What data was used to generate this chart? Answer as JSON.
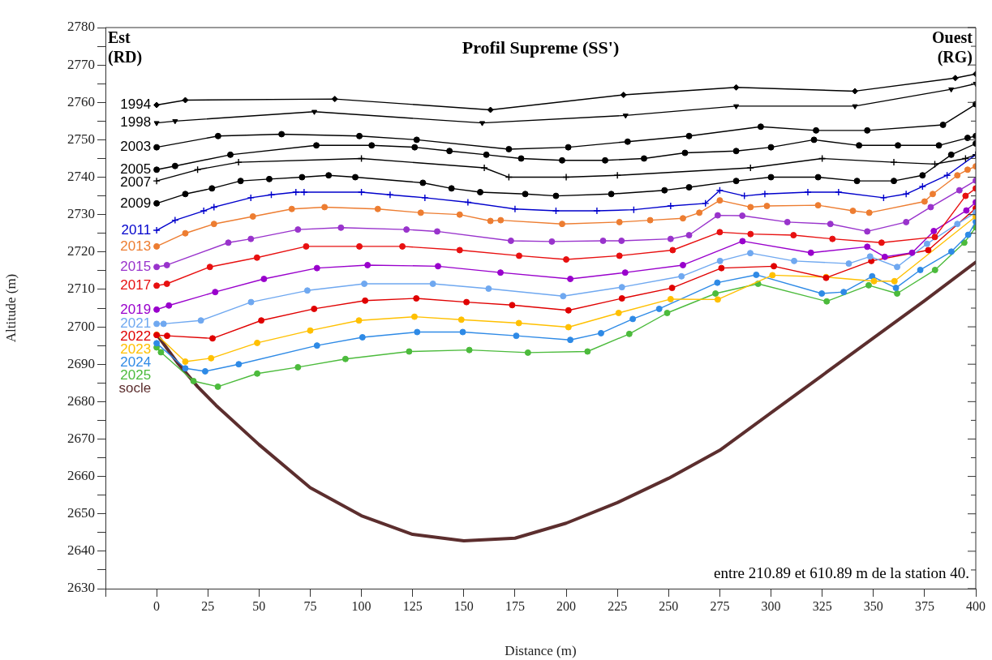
{
  "chart_data": {
    "type": "line",
    "title": "Profil Supreme (SS')",
    "xlabel": "Distance (m)",
    "ylabel": "Altitude (m)",
    "annotations": [
      "Est\n(RD)",
      "Ouest\n(RG)",
      "entre 210.89 et 610.89 m de la station 40."
    ],
    "xlim": [
      -25,
      400
    ],
    "xticks": [
      {
        "value": -25,
        "label": null
      },
      0,
      25,
      50,
      75,
      100,
      125,
      150,
      175,
      200,
      225,
      250,
      275,
      300,
      325,
      350,
      375,
      400
    ],
    "ylim": [
      2630,
      2780
    ],
    "yticks": [
      2630,
      {
        "value": 2635,
        "label": null
      },
      2640,
      {
        "value": 2645,
        "label": null
      },
      2650,
      {
        "value": 2655,
        "label": null
      },
      2660,
      {
        "value": 2665,
        "label": null
      },
      2670,
      {
        "value": 2675,
        "label": null
      },
      2680,
      {
        "value": 2685,
        "label": null
      },
      2690,
      {
        "value": 2695,
        "label": null
      },
      2700,
      {
        "value": 2705,
        "label": null
      },
      2710,
      {
        "value": 2715,
        "label": null
      },
      2720,
      {
        "value": 2725,
        "label": null
      },
      2730,
      {
        "value": 2735,
        "label": null
      },
      2740,
      {
        "value": 2745,
        "label": null
      },
      2750,
      {
        "value": 2755,
        "label": null
      },
      2760,
      {
        "value": 2765,
        "label": null
      },
      2770,
      {
        "value": 2775,
        "label": null
      },
      2780
    ],
    "grid": false,
    "legend": false,
    "line_style": "solid",
    "series": [
      {
        "name": "1994",
        "color": "#000000",
        "marker": "diamond",
        "x": [
          0,
          14,
          87,
          163,
          228,
          283,
          341,
          390,
          400
        ],
        "values": [
          2759.3,
          2760.6,
          2760.9,
          2758,
          2762,
          2764,
          2763,
          2766.5,
          2767.6
        ]
      },
      {
        "name": "1998",
        "color": "#000000",
        "marker": "triangle",
        "x": [
          0,
          9,
          77,
          159,
          229,
          283,
          341,
          388,
          400
        ],
        "values": [
          2754.5,
          2755,
          2757.5,
          2754.5,
          2756.5,
          2759,
          2759,
          2763.5,
          2765
        ]
      },
      {
        "name": "2003",
        "color": "#000000",
        "marker": "circle",
        "x": [
          0,
          30,
          61,
          99,
          127,
          172,
          201,
          230,
          260,
          295,
          322,
          347,
          384,
          400
        ],
        "values": [
          2748,
          2751,
          2751.5,
          2751,
          2750,
          2747.5,
          2748,
          2749.5,
          2751,
          2753.5,
          2752.5,
          2752.5,
          2754,
          2759.5
        ]
      },
      {
        "name": "2005",
        "color": "#000000",
        "marker": "circle",
        "x": [
          0,
          9,
          36,
          78,
          105,
          126,
          143,
          161,
          178,
          198,
          219,
          238,
          258,
          283,
          300,
          321,
          343,
          362,
          382,
          396,
          400
        ],
        "values": [
          2742,
          2743,
          2746,
          2748.5,
          2748.5,
          2748,
          2747,
          2746,
          2745,
          2744.5,
          2744.5,
          2745,
          2746.5,
          2747,
          2748,
          2750,
          2748.5,
          2748.5,
          2748.5,
          2750.5,
          2751
        ]
      },
      {
        "name": "2007",
        "color": "#000000",
        "marker": "cross",
        "x": [
          0,
          20,
          40,
          100,
          160,
          172,
          200,
          225,
          290,
          325,
          360,
          380,
          395,
          400
        ],
        "values": [
          2739,
          2742,
          2744,
          2745,
          2742.5,
          2740,
          2740,
          2740.5,
          2742.5,
          2745,
          2744,
          2743.5,
          2745,
          2746
        ]
      },
      {
        "name": "2009",
        "color": "#000000",
        "marker": "circle",
        "x": [
          0,
          14,
          27,
          41,
          55,
          71,
          84,
          97,
          130,
          144,
          158,
          180,
          195,
          222,
          248,
          260,
          283,
          300,
          323,
          342,
          360,
          374,
          388,
          400
        ],
        "values": [
          2733,
          2735.5,
          2737,
          2739,
          2739.5,
          2740,
          2740.5,
          2740,
          2738.5,
          2737,
          2736,
          2735.5,
          2735,
          2735.5,
          2736.5,
          2737.3,
          2739,
          2740,
          2740,
          2739,
          2739,
          2740.5,
          2746,
          2749
        ]
      },
      {
        "name": "2011",
        "color": "#0000cc",
        "marker": "cross",
        "x": [
          0,
          9,
          23,
          28,
          46,
          56,
          68,
          72,
          100,
          114,
          131,
          152,
          175,
          195,
          215,
          233,
          251,
          268,
          275,
          287,
          297,
          318,
          333,
          355,
          366,
          374,
          386,
          400
        ],
        "values": [
          2725.8,
          2728.5,
          2731,
          2732,
          2734.5,
          2735.3,
          2736,
          2736,
          2736,
          2735.3,
          2734.5,
          2733.3,
          2731.5,
          2731,
          2731,
          2731.3,
          2732.3,
          2733,
          2736.5,
          2735,
          2735.5,
          2736,
          2736,
          2734.5,
          2735.5,
          2737.5,
          2740.5,
          2746
        ]
      },
      {
        "name": "2013",
        "color": "#ed7d31",
        "marker": "circle",
        "x": [
          0,
          14,
          28,
          47,
          66,
          82,
          108,
          129,
          148,
          163,
          168,
          198,
          226,
          241,
          257,
          265,
          275,
          290,
          298,
          323,
          340,
          348,
          375,
          379,
          391,
          396,
          400
        ],
        "values": [
          2721.5,
          2725,
          2727.5,
          2729.5,
          2731.5,
          2732,
          2731.5,
          2730.5,
          2730,
          2728.3,
          2728.5,
          2727.5,
          2728,
          2728.5,
          2729,
          2730.5,
          2733.8,
          2732,
          2732.3,
          2732.5,
          2731,
          2730.5,
          2733.5,
          2735.5,
          2740.5,
          2742,
          2742.9
        ]
      },
      {
        "name": "2015",
        "color": "#9933cc",
        "marker": "circle",
        "x": [
          0,
          5,
          35,
          46,
          69,
          90,
          122,
          137,
          173,
          193,
          218,
          227,
          251,
          260,
          274,
          286,
          308,
          329,
          347,
          366,
          378,
          392,
          400
        ],
        "values": [
          2716,
          2716.5,
          2722.5,
          2723.5,
          2726,
          2726.5,
          2726,
          2725.5,
          2723,
          2722.8,
          2723,
          2723,
          2723.5,
          2724.5,
          2729.8,
          2729.7,
          2728,
          2727.5,
          2725.5,
          2728,
          2732,
          2736.5,
          2739.1
        ]
      },
      {
        "name": "2017",
        "color": "#e81010",
        "marker": "circle",
        "x": [
          0,
          5,
          26,
          49,
          73,
          99,
          120,
          148,
          177,
          200,
          226,
          252,
          275,
          290,
          311,
          330,
          354,
          380,
          395,
          400
        ],
        "values": [
          2711,
          2711.5,
          2716,
          2718.5,
          2721.5,
          2721.5,
          2721.5,
          2720.5,
          2719,
          2718,
          2719,
          2720.5,
          2725.3,
          2724.8,
          2724.5,
          2723.5,
          2722.5,
          2724,
          2735,
          2737
        ]
      },
      {
        "name": "2019",
        "color": "#9900cc",
        "marker": "circle",
        "x": [
          0,
          6,
          28.6,
          52.4,
          78.3,
          103,
          137.4,
          167.9,
          202,
          228.8,
          257,
          286.1,
          319.5,
          347,
          355.6,
          368.9,
          379.5,
          395.4,
          400
        ],
        "values": [
          2704.6,
          2705.7,
          2709.3,
          2712.8,
          2715.7,
          2716.5,
          2716.2,
          2714.5,
          2712.8,
          2714.5,
          2716.5,
          2722.9,
          2719.8,
          2721.4,
          2718.7,
          2719.8,
          2725.6,
          2731.1,
          2733.3
        ]
      },
      {
        "name": "2021",
        "color": "#6fa8f0",
        "marker": "circle",
        "x": [
          0,
          3.4,
          21.6,
          46.1,
          73.6,
          101.4,
          134.9,
          162.1,
          198.5,
          227.2,
          256.3,
          275.1,
          289.9,
          311.3,
          338,
          348.4,
          361.6,
          376.2,
          391,
          400
        ],
        "values": [
          2700.8,
          2700.8,
          2701.7,
          2706.6,
          2709.7,
          2711.5,
          2711.5,
          2710.2,
          2708.2,
          2710.6,
          2713.5,
          2717.6,
          2719.7,
          2717.6,
          2716.9,
          2718.8,
          2716,
          2722.2,
          2727.5,
          2730.6
        ]
      },
      {
        "name": "2022",
        "color": "#e00000",
        "marker": "circle",
        "x": [
          0,
          5.1,
          27.3,
          51.1,
          76.9,
          101.8,
          126.8,
          151.3,
          173.6,
          201.1,
          227.2,
          251.7,
          275.8,
          301.4,
          326.9,
          349,
          376.8,
          400
        ],
        "values": [
          2697.8,
          2697.6,
          2696.9,
          2701.7,
          2704.8,
          2707,
          2707.6,
          2706.6,
          2705.8,
          2704.4,
          2707.6,
          2710.4,
          2715.7,
          2716.2,
          2713.1,
          2717.6,
          2720.5,
          2731.7
        ]
      },
      {
        "name": "2023",
        "color": "#ffc000",
        "marker": "circle",
        "x": [
          0,
          14,
          26.6,
          49.1,
          75,
          98.8,
          125.9,
          148.8,
          176.9,
          201.1,
          225.6,
          251,
          274,
          300.7,
          326.9,
          350.3,
          360.3,
          400
        ],
        "values": [
          2697.9,
          2690.7,
          2691.6,
          2695.7,
          2699,
          2701.7,
          2702.7,
          2701.9,
          2701,
          2699.9,
          2703.7,
          2707.4,
          2707.3,
          2713.8,
          2713.3,
          2712.2,
          2712.2,
          2729.5
        ]
      },
      {
        "name": "2024",
        "color": "#2e8ae6",
        "marker": "circle",
        "x": [
          0,
          14,
          23.7,
          40.1,
          78.3,
          100.5,
          127.2,
          149.5,
          175.6,
          202,
          217,
          232.5,
          245.4,
          273.8,
          292.8,
          324.8,
          335.5,
          349.4,
          361,
          372.9,
          388.1,
          396.3,
          400
        ],
        "values": [
          2695.6,
          2688.9,
          2688.1,
          2690,
          2695,
          2697.2,
          2698.6,
          2698.6,
          2697.6,
          2696.5,
          2698.3,
          2702.1,
          2704.8,
          2711.8,
          2713.9,
          2708.9,
          2709.3,
          2713.5,
          2710.4,
          2715.2,
          2720.1,
          2724.6,
          2728.1
        ]
      },
      {
        "name": "2025",
        "color": "#4cbb3c",
        "marker": "circle",
        "x": [
          0,
          2.1,
          18,
          29.9,
          49.1,
          69,
          92.2,
          123.3,
          152.7,
          181.3,
          210.4,
          230.8,
          249.3,
          272.9,
          293.7,
          327.2,
          347.7,
          361.6,
          380.1,
          394.4,
          400
        ],
        "values": [
          2694.5,
          2693.2,
          2685.5,
          2684,
          2687.5,
          2689.2,
          2691.4,
          2693.4,
          2693.8,
          2693.1,
          2693.4,
          2698.1,
          2703.7,
          2708.9,
          2711.5,
          2706.8,
          2711.1,
          2708.9,
          2715.2,
          2722.5,
          2726.6
        ]
      },
      {
        "name": "socle",
        "color": "#5c2e2e",
        "marker": "none",
        "x": [
          0,
          10,
          20,
          29,
          50,
          75,
          100,
          125,
          150,
          175,
          200,
          225,
          250,
          275,
          300,
          325,
          350,
          375,
          400
        ],
        "values": [
          2698,
          2690.5,
          2684,
          2679,
          2668.5,
          2657,
          2649.5,
          2644.5,
          2642.8,
          2643.5,
          2647.5,
          2653,
          2659.5,
          2667,
          2677,
          2687,
          2697,
          2707,
          2717.3
        ]
      }
    ]
  }
}
